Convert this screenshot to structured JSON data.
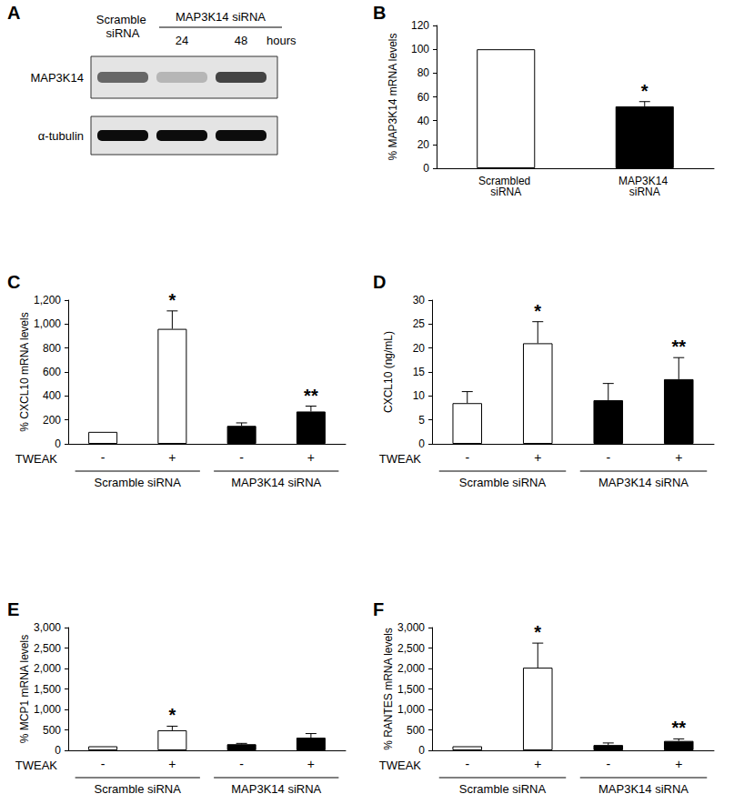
{
  "blot": {
    "panel": "A",
    "header": {
      "control": "Scramble siRNA",
      "treatment": "MAP3K14 siRNA",
      "timepoints": [
        "24",
        "48"
      ],
      "time_unit": "hours"
    },
    "rows": [
      {
        "label": "MAP3K14",
        "intensity": [
          0.55,
          0.2,
          0.7
        ]
      },
      {
        "label": "α-tubulin",
        "intensity": [
          0.95,
          0.95,
          0.95
        ]
      }
    ]
  },
  "chart_data": [
    {
      "panel": "B",
      "type": "bar",
      "y_label": "% MAP3K14 mRNA levels",
      "categories": [
        "Scrambled siRNA",
        "MAP3K14 siRNA"
      ],
      "values": [
        100,
        52
      ],
      "errors": [
        null,
        4
      ],
      "colors": [
        "#ffffff",
        "#000000"
      ],
      "annotations": [
        null,
        "*"
      ],
      "ylim": [
        0,
        120
      ],
      "yticks": [
        0,
        20,
        40,
        60,
        80,
        100,
        120
      ]
    },
    {
      "panel": "C",
      "type": "bar",
      "y_label": "% CXCL10 mRNA levels",
      "x_title": "TWEAK",
      "categories": [
        "-",
        "+",
        "-",
        "+"
      ],
      "group_labels": [
        "Scramble siRNA",
        "MAP3K14 siRNA"
      ],
      "values": [
        100,
        960,
        150,
        270
      ],
      "errors": [
        null,
        150,
        25,
        45
      ],
      "colors": [
        "#ffffff",
        "#ffffff",
        "#000000",
        "#000000"
      ],
      "annotations": [
        null,
        "*",
        null,
        "**"
      ],
      "ylim": [
        0,
        1200
      ],
      "yticks": [
        0,
        200,
        400,
        600,
        800,
        1000,
        1200
      ]
    },
    {
      "panel": "D",
      "type": "bar",
      "y_label": "CXCL10 (ng/mL)",
      "x_title": "TWEAK",
      "categories": [
        "-",
        "+",
        "-",
        "+"
      ],
      "group_labels": [
        "Scramble siRNA",
        "MAP3K14 siRNA"
      ],
      "values": [
        8.5,
        21,
        9.1,
        13.5
      ],
      "errors": [
        2.4,
        4.5,
        3.5,
        4.5
      ],
      "colors": [
        "#ffffff",
        "#ffffff",
        "#000000",
        "#000000"
      ],
      "annotations": [
        null,
        "*",
        null,
        "**"
      ],
      "ylim": [
        0,
        30
      ],
      "yticks": [
        0,
        5,
        10,
        15,
        20,
        25,
        30
      ]
    },
    {
      "panel": "E",
      "type": "bar",
      "y_label": "% MCP1 mRNA levels",
      "x_title": "TWEAK",
      "categories": [
        "-",
        "+",
        "-",
        "+"
      ],
      "group_labels": [
        "Scramble siRNA",
        "MAP3K14 siRNA"
      ],
      "values": [
        100,
        490,
        150,
        310
      ],
      "errors": [
        null,
        100,
        20,
        100
      ],
      "colors": [
        "#ffffff",
        "#ffffff",
        "#000000",
        "#000000"
      ],
      "annotations": [
        null,
        "*",
        null,
        null
      ],
      "ylim": [
        0,
        3000
      ],
      "yticks": [
        0,
        500,
        1000,
        1500,
        2000,
        2500,
        3000
      ]
    },
    {
      "panel": "F",
      "type": "bar",
      "y_label": "% RANTES mRNA levels",
      "x_title": "TWEAK",
      "categories": [
        "-",
        "+",
        "-",
        "+"
      ],
      "group_labels": [
        "Scramble siRNA",
        "MAP3K14 siRNA"
      ],
      "values": [
        100,
        2020,
        130,
        230
      ],
      "errors": [
        null,
        600,
        50,
        50
      ],
      "colors": [
        "#ffffff",
        "#ffffff",
        "#000000",
        "#000000"
      ],
      "annotations": [
        null,
        "*",
        null,
        "**"
      ],
      "ylim": [
        0,
        3000
      ],
      "yticks": [
        0,
        500,
        1000,
        1500,
        2000,
        2500,
        3000
      ]
    }
  ]
}
